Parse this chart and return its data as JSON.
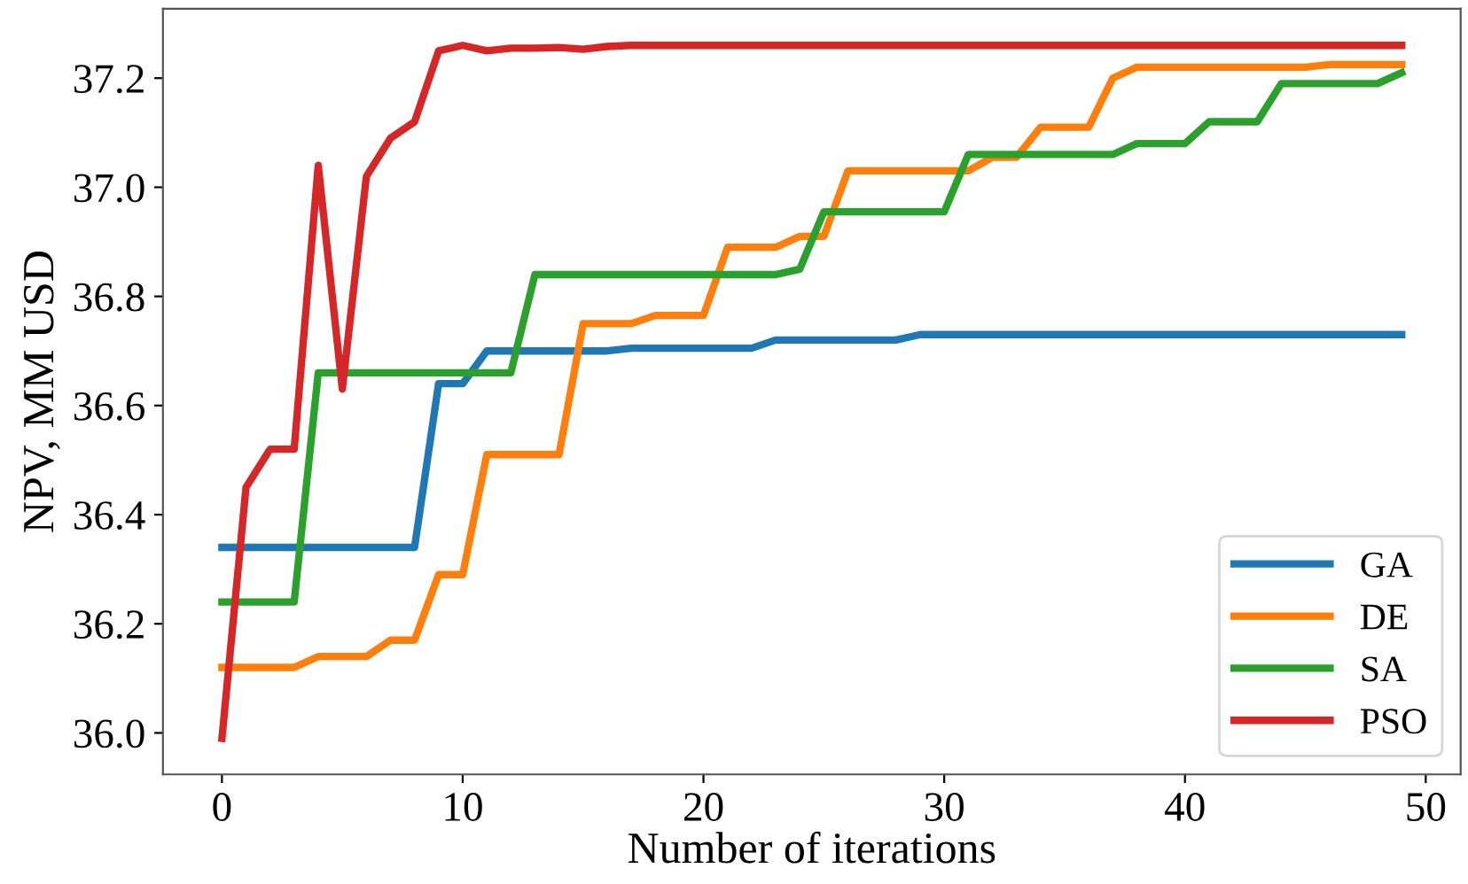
{
  "chart_data": {
    "type": "line",
    "xlabel": "Number of iterations",
    "ylabel": "NPV, MM USD",
    "x": [
      0,
      1,
      2,
      3,
      4,
      5,
      6,
      7,
      8,
      9,
      10,
      11,
      12,
      13,
      14,
      15,
      16,
      17,
      18,
      19,
      20,
      21,
      22,
      23,
      24,
      25,
      26,
      27,
      28,
      29,
      30,
      31,
      32,
      33,
      34,
      35,
      36,
      37,
      38,
      39,
      40,
      41,
      42,
      43,
      44,
      45,
      46,
      47,
      48,
      49
    ],
    "series": [
      {
        "name": "GA",
        "color": "#1f77b4",
        "values": [
          36.34,
          36.34,
          36.34,
          36.34,
          36.34,
          36.34,
          36.34,
          36.34,
          36.34,
          36.64,
          36.64,
          36.7,
          36.7,
          36.7,
          36.7,
          36.7,
          36.7,
          36.705,
          36.705,
          36.705,
          36.705,
          36.705,
          36.705,
          36.72,
          36.72,
          36.72,
          36.72,
          36.72,
          36.72,
          36.73,
          36.73,
          36.73,
          36.73,
          36.73,
          36.73,
          36.73,
          36.73,
          36.73,
          36.73,
          36.73,
          36.73,
          36.73,
          36.73,
          36.73,
          36.73,
          36.73,
          36.73,
          36.73,
          36.73,
          36.73
        ]
      },
      {
        "name": "DE",
        "color": "#ff7f0e",
        "values": [
          36.12,
          36.12,
          36.12,
          36.12,
          36.14,
          36.14,
          36.14,
          36.17,
          36.17,
          36.29,
          36.29,
          36.51,
          36.51,
          36.51,
          36.51,
          36.75,
          36.75,
          36.75,
          36.765,
          36.765,
          36.765,
          36.89,
          36.89,
          36.89,
          36.91,
          36.91,
          37.03,
          37.03,
          37.03,
          37.03,
          37.03,
          37.03,
          37.055,
          37.055,
          37.11,
          37.11,
          37.11,
          37.2,
          37.22,
          37.22,
          37.22,
          37.22,
          37.22,
          37.22,
          37.22,
          37.22,
          37.225,
          37.225,
          37.225,
          37.225
        ]
      },
      {
        "name": "SA",
        "color": "#2ca02c",
        "values": [
          36.24,
          36.24,
          36.24,
          36.24,
          36.66,
          36.66,
          36.66,
          36.66,
          36.66,
          36.66,
          36.66,
          36.66,
          36.66,
          36.84,
          36.84,
          36.84,
          36.84,
          36.84,
          36.84,
          36.84,
          36.84,
          36.84,
          36.84,
          36.84,
          36.85,
          36.955,
          36.955,
          36.955,
          36.955,
          36.955,
          36.955,
          37.06,
          37.06,
          37.06,
          37.06,
          37.06,
          37.06,
          37.06,
          37.08,
          37.08,
          37.08,
          37.12,
          37.12,
          37.12,
          37.19,
          37.19,
          37.19,
          37.19,
          37.19,
          37.21
        ]
      },
      {
        "name": "PSO",
        "color": "#d62728",
        "values": [
          35.99,
          36.45,
          36.52,
          36.52,
          37.04,
          36.63,
          37.02,
          37.09,
          37.12,
          37.25,
          37.26,
          37.25,
          37.255,
          37.255,
          37.256,
          37.253,
          37.258,
          37.26,
          37.26,
          37.26,
          37.26,
          37.26,
          37.26,
          37.26,
          37.26,
          37.26,
          37.26,
          37.26,
          37.26,
          37.26,
          37.26,
          37.26,
          37.26,
          37.26,
          37.26,
          37.26,
          37.26,
          37.26,
          37.26,
          37.26,
          37.26,
          37.26,
          37.26,
          37.26,
          37.26,
          37.26,
          37.26,
          37.26,
          37.26,
          37.26
        ]
      }
    ],
    "xlim": [
      -2.45,
      51.45
    ],
    "ylim": [
      35.924,
      37.327
    ],
    "xticks": [
      0,
      10,
      20,
      30,
      40,
      50
    ],
    "yticks": [
      {
        "value": 36.0,
        "label": "36.0"
      },
      {
        "value": 36.2,
        "label": "36.2"
      },
      {
        "value": 36.4,
        "label": "36.4"
      },
      {
        "value": 36.6,
        "label": "36.6"
      },
      {
        "value": 36.8,
        "label": "36.8"
      },
      {
        "value": 37.0,
        "label": "37.0"
      },
      {
        "value": 37.2,
        "label": "37.2"
      }
    ],
    "legend": "bottom right",
    "grid": false,
    "marker": "none",
    "line_style": "solid"
  }
}
